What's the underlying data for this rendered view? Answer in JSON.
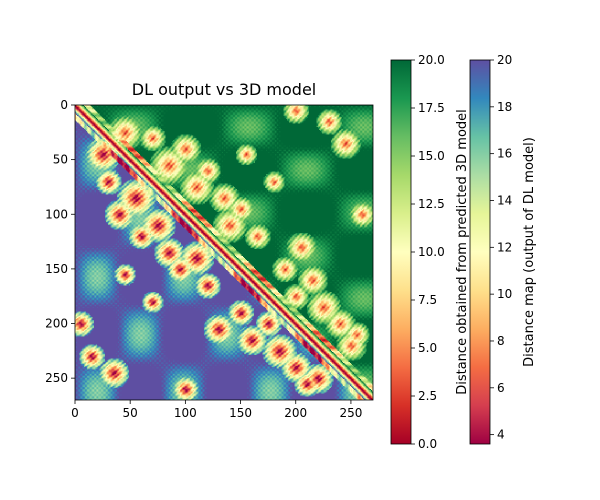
{
  "chart_data": {
    "type": "heatmap",
    "title": "DL output vs 3D model",
    "xlabel": "",
    "ylabel": "",
    "n": 270,
    "x_ticks": [
      0,
      50,
      100,
      150,
      200,
      250
    ],
    "y_ticks": [
      0,
      50,
      100,
      150,
      200,
      250
    ],
    "xlim": [
      0,
      270
    ],
    "ylim_inverted": [
      270,
      0
    ],
    "upper_triangle": {
      "source": "predicted 3D model",
      "colormap": "RdYlGn",
      "range": [
        0.0,
        20.0
      ],
      "colorbar_label": "Distance obtained from predicted 3D model",
      "colorbar_ticks": [
        "0.0",
        "2.5",
        "5.0",
        "7.5",
        "10.0",
        "12.5",
        "15.0",
        "17.5",
        "20.0"
      ],
      "colors": [
        "#a50026",
        "#d73027",
        "#f46d43",
        "#fdae61",
        "#fee08b",
        "#ffffbf",
        "#d9ef8b",
        "#a6d96a",
        "#66bd63",
        "#1a9850",
        "#006837"
      ]
    },
    "lower_triangle": {
      "source": "DL model output",
      "colormap": "Spectral",
      "range": [
        3.6,
        20.0
      ],
      "colorbar_label": "Distance map (output of DL model)",
      "colorbar_ticks": [
        "4",
        "6",
        "8",
        "10",
        "12",
        "14",
        "16",
        "18",
        "20"
      ],
      "colors": [
        "#9e0142",
        "#d53e4f",
        "#f46d43",
        "#fdae61",
        "#fee08b",
        "#ffffbf",
        "#e6f598",
        "#abdda4",
        "#66c2a5",
        "#3288bd",
        "#5e4fa2"
      ]
    },
    "contact_regions": [
      {
        "i": 25,
        "j": 45,
        "w": 8
      },
      {
        "i": 30,
        "j": 70,
        "w": 6
      },
      {
        "i": 40,
        "j": 100,
        "w": 7
      },
      {
        "i": 55,
        "j": 85,
        "w": 9
      },
      {
        "i": 60,
        "j": 120,
        "w": 6
      },
      {
        "i": 75,
        "j": 110,
        "w": 8
      },
      {
        "i": 85,
        "j": 135,
        "w": 7
      },
      {
        "i": 95,
        "j": 150,
        "w": 6
      },
      {
        "i": 110,
        "j": 140,
        "w": 8
      },
      {
        "i": 120,
        "j": 165,
        "w": 6
      },
      {
        "i": 130,
        "j": 205,
        "w": 7
      },
      {
        "i": 150,
        "j": 190,
        "w": 6
      },
      {
        "i": 160,
        "j": 215,
        "w": 7
      },
      {
        "i": 175,
        "j": 200,
        "w": 6
      },
      {
        "i": 185,
        "j": 225,
        "w": 8
      },
      {
        "i": 200,
        "j": 240,
        "w": 7
      },
      {
        "i": 210,
        "j": 255,
        "w": 6
      },
      {
        "i": 220,
        "j": 250,
        "w": 7
      },
      {
        "i": 45,
        "j": 155,
        "w": 5
      },
      {
        "i": 15,
        "j": 230,
        "w": 6
      },
      {
        "i": 35,
        "j": 245,
        "w": 7
      },
      {
        "i": 5,
        "j": 200,
        "w": 6
      },
      {
        "i": 70,
        "j": 180,
        "w": 5
      },
      {
        "i": 100,
        "j": 260,
        "w": 6
      }
    ]
  }
}
